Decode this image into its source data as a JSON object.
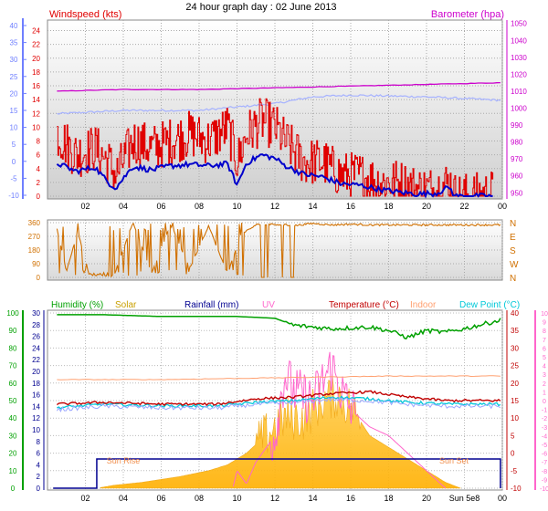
{
  "page_title": "24 hour graph day : 02 June 2013",
  "colors": {
    "wind": "#e00000",
    "wind_avg": "#0000cc",
    "baro": "#cc00cc",
    "baro_axis_fg": "#cc00cc",
    "temp_axis": "#6f7fff",
    "dir": "#d07000",
    "humidity": "#00a000",
    "solar": "#ffc000",
    "rainfall": "#000090",
    "uv": "#ff66cc",
    "temperature": "#c00000",
    "indoor": "#ffa070",
    "dewpoint": "#00c8d8",
    "dew_line": "#9aa6ff"
  },
  "chart_data": [
    {
      "type": "line",
      "title": "24 hour graph day : 02 June 2013",
      "left_axis_label": "Windspeed (kts)",
      "right_axis_label": "Barometer (hpa)",
      "x_ticks": [
        "02",
        "04",
        "06",
        "08",
        "10",
        "12",
        "14",
        "16",
        "18",
        "20",
        "22",
        "00"
      ],
      "y_wind_ticks": [
        0,
        2,
        4,
        6,
        8,
        10,
        12,
        14,
        16,
        18,
        20,
        22,
        24
      ],
      "y_temp_ticks": [
        -10,
        -5,
        0,
        5,
        10,
        15,
        20,
        25,
        30,
        35,
        40
      ],
      "y_baro_ticks": [
        950,
        960,
        970,
        980,
        990,
        1000,
        1010,
        1020,
        1030,
        1040,
        1050
      ],
      "ylim_wind": [
        0,
        25
      ],
      "ylim_baro": [
        948,
        1052
      ],
      "series": [
        {
          "name": "Windspeed",
          "x": [
            0.5,
            1.5,
            2.5,
            3.2,
            3.6,
            4.5,
            5.5,
            6.5,
            7.5,
            8.5,
            9.5,
            10,
            10.5,
            11.3,
            12,
            12.5,
            13.5,
            14.5,
            15.5,
            16.5,
            17.5,
            18.5,
            19.5,
            20.5,
            21.2,
            21.5,
            22.5,
            23.5
          ],
          "y": [
            9,
            6,
            7,
            5,
            3,
            8,
            7,
            8,
            9,
            8,
            10,
            5,
            9,
            11,
            10,
            8,
            5,
            5,
            3,
            3,
            2,
            2,
            1,
            1,
            2,
            0,
            0,
            0.5
          ]
        },
        {
          "name": "Avg wind",
          "x": [
            0.5,
            1.5,
            2.5,
            3.2,
            3.6,
            4.5,
            5.5,
            6.5,
            7.5,
            8.5,
            9.5,
            10,
            10.5,
            11.3,
            12,
            12.5,
            13.5,
            14.5,
            15.5,
            16.5,
            17.5,
            18.5,
            19.5,
            20.5,
            21.2,
            21.5,
            22.5,
            23.5
          ],
          "y": [
            4.8,
            3.6,
            4.2,
            2,
            1.2,
            4.3,
            3.8,
            4.4,
            4.6,
            4.4,
            4.7,
            1.6,
            4.8,
            6,
            5.5,
            4.5,
            3.2,
            2.8,
            1.8,
            1.6,
            1,
            0.6,
            0.3,
            0.4,
            1.3,
            0,
            0,
            0
          ]
        },
        {
          "name": "Barometer",
          "x": [
            0.5,
            4,
            8,
            12,
            16,
            20,
            23.9
          ],
          "y": [
            1010,
            1011,
            1011,
            1012,
            1013,
            1014,
            1015
          ]
        },
        {
          "name": "Temp",
          "x": [
            0.5,
            4,
            8,
            12,
            14,
            16,
            20,
            23.9
          ],
          "y": [
            14,
            15,
            15,
            17,
            19,
            19.5,
            19,
            18
          ]
        }
      ]
    },
    {
      "type": "line",
      "title": "",
      "left_ticks": [
        0,
        90,
        180,
        270,
        360
      ],
      "right_ticks": [
        "N",
        "W",
        "S",
        "E",
        "N"
      ],
      "ylim": [
        0,
        360
      ],
      "series": [
        {
          "name": "Direction",
          "x": [
            0.5,
            1,
            1.6,
            2.2,
            3.5,
            4.5,
            5.5,
            6.5,
            7.5,
            8.5,
            9.5,
            10.2,
            11,
            12,
            13,
            14,
            15,
            16,
            17,
            18,
            19,
            20,
            21,
            22,
            23.5
          ],
          "y": [
            320,
            40,
            300,
            20,
            10,
            360,
            30,
            350,
            60,
            340,
            20,
            280,
            345,
            350,
            340,
            355,
            345,
            350,
            345,
            345,
            345,
            345,
            345,
            345,
            345
          ]
        }
      ]
    },
    {
      "type": "area",
      "title": "",
      "legend": [
        "Humidity  (%)",
        "Solar",
        "Rainfall (mm)",
        "UV",
        "Temperature (°C)",
        "Indoor",
        "Dew Point (°C)"
      ],
      "left_ticks": [
        0,
        10,
        20,
        30,
        40,
        50,
        60,
        70,
        80,
        90,
        100
      ],
      "left2_ticks": [
        0,
        2,
        4,
        6,
        8,
        10,
        12,
        14,
        16,
        18,
        20,
        22,
        24,
        26,
        28,
        30
      ],
      "right_ticks": [
        -10,
        -5,
        0,
        5,
        10,
        15,
        20,
        25,
        30,
        35,
        40
      ],
      "right2_ticks": [
        -10,
        -9,
        -8,
        -7,
        -6,
        -5,
        -4,
        -3,
        -2,
        -1,
        0,
        1,
        2,
        3,
        4,
        5,
        6,
        7,
        8,
        9,
        10
      ],
      "x_ticks": [
        "02",
        "04",
        "06",
        "08",
        "10",
        "12",
        "14",
        "16",
        "18",
        "20",
        "Sun 5e8",
        "00"
      ],
      "annotations": [
        "Sun Rise",
        "Sun Set"
      ],
      "series": [
        {
          "name": "Humidity",
          "x": [
            0.5,
            3,
            6,
            10,
            12,
            13,
            15,
            17,
            18,
            19,
            20,
            21,
            22,
            23.9
          ],
          "y": [
            99,
            99,
            98,
            98,
            97,
            93,
            91,
            92,
            90,
            86,
            90,
            89,
            91,
            96
          ]
        },
        {
          "name": "Temperature",
          "x": [
            0.5,
            3,
            6,
            9,
            11,
            13,
            15,
            17,
            19,
            21,
            23.9
          ],
          "y": [
            14,
            14.5,
            14,
            14,
            15.5,
            16,
            17,
            17.5,
            16,
            15,
            15
          ]
        },
        {
          "name": "Dew Point",
          "x": [
            0.5,
            3,
            6,
            9,
            11,
            13,
            15,
            17,
            19,
            21,
            23.9
          ],
          "y": [
            13,
            14,
            13.5,
            13.5,
            14.5,
            15,
            16,
            15.5,
            14.5,
            14,
            14
          ]
        },
        {
          "name": "Indoor",
          "x": [
            0.5,
            6,
            12,
            18,
            23.9
          ],
          "y": [
            21,
            21,
            21.5,
            22,
            22
          ]
        },
        {
          "name": "Solar",
          "x": [
            2.8,
            3.5,
            5,
            7,
            8.5,
            9.5,
            10.5,
            11.5,
            12.5,
            13.5,
            14.5,
            15.3,
            16.2,
            17,
            18,
            19,
            20,
            21,
            21.8
          ],
          "y": [
            0.1,
            0.5,
            1,
            2,
            3,
            4,
            6,
            9,
            12,
            12,
            15,
            16,
            13,
            9,
            7,
            5,
            3,
            1,
            0
          ]
        },
        {
          "name": "UV",
          "x": [
            9.8,
            10,
            10.5,
            11,
            12,
            12.5,
            13,
            14,
            14.5,
            15,
            15.5,
            16,
            17,
            18,
            19,
            20,
            21
          ],
          "y": [
            -9.8,
            -8,
            -9.5,
            -7,
            -4,
            3,
            1,
            0,
            2,
            4,
            1,
            -1,
            -3,
            -4,
            -6,
            -8,
            -10
          ]
        },
        {
          "name": "Rainfall",
          "x": [
            0.5,
            2.5,
            2.6,
            23,
            23.1
          ],
          "y": [
            0,
            0,
            1,
            1,
            0
          ]
        }
      ]
    }
  ]
}
